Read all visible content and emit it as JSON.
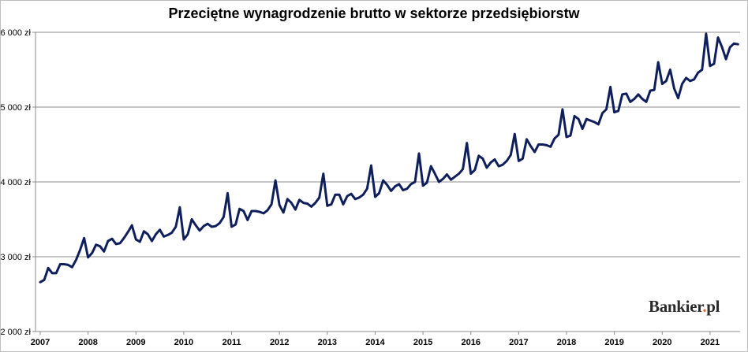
{
  "chart_data": {
    "type": "line",
    "title": "Przeciętne wynagrodzenie brutto w sektorze przedsiębiorstw",
    "xlabel": "",
    "ylabel": "",
    "ylim": [
      2000,
      6000
    ],
    "yticks": [
      2000,
      3000,
      4000,
      5000,
      6000
    ],
    "ytick_labels": [
      "2 000 zł",
      "3 000 zł",
      "4 000 zł",
      "5 000 zł",
      "6 000 zł"
    ],
    "xtick_labels": [
      "2007",
      "2008",
      "2009",
      "2010",
      "2011",
      "2012",
      "2013",
      "2014",
      "2015",
      "2016",
      "2017",
      "2018",
      "2019",
      "2020",
      "2021"
    ],
    "grid": true,
    "line_color": "#0f1f5c",
    "x_start": "2007-01",
    "x_step": "month",
    "series": [
      {
        "values": [
          2660,
          2690,
          2850,
          2780,
          2780,
          2900,
          2900,
          2890,
          2860,
          2960,
          3090,
          3250,
          2990,
          3050,
          3160,
          3140,
          3070,
          3210,
          3240,
          3170,
          3180,
          3250,
          3330,
          3420,
          3230,
          3200,
          3340,
          3300,
          3210,
          3300,
          3360,
          3270,
          3290,
          3320,
          3400,
          3660,
          3230,
          3300,
          3500,
          3420,
          3350,
          3410,
          3440,
          3400,
          3410,
          3450,
          3530,
          3850,
          3400,
          3430,
          3640,
          3610,
          3490,
          3610,
          3610,
          3600,
          3580,
          3620,
          3700,
          4020,
          3690,
          3590,
          3770,
          3720,
          3630,
          3760,
          3720,
          3710,
          3670,
          3720,
          3790,
          4110,
          3680,
          3700,
          3830,
          3830,
          3700,
          3810,
          3840,
          3770,
          3790,
          3830,
          3910,
          4220,
          3800,
          3850,
          4020,
          3960,
          3880,
          3940,
          3970,
          3890,
          3910,
          3970,
          4000,
          4380,
          3950,
          3990,
          4210,
          4110,
          4000,
          4040,
          4100,
          4030,
          4070,
          4110,
          4170,
          4520,
          4110,
          4160,
          4350,
          4310,
          4190,
          4260,
          4300,
          4210,
          4230,
          4280,
          4360,
          4640,
          4280,
          4310,
          4570,
          4480,
          4400,
          4500,
          4500,
          4490,
          4470,
          4580,
          4630,
          4970,
          4600,
          4620,
          4880,
          4840,
          4710,
          4840,
          4820,
          4800,
          4770,
          4920,
          4970,
          5270,
          4930,
          4950,
          5170,
          5180,
          5070,
          5110,
          5170,
          5110,
          5070,
          5220,
          5230,
          5600,
          5310,
          5350,
          5500,
          5250,
          5120,
          5310,
          5390,
          5350,
          5370,
          5460,
          5500,
          5980,
          5550,
          5580,
          5930,
          5800,
          5640,
          5800,
          5850,
          5840
        ]
      }
    ]
  },
  "watermark": {
    "brand": "Bankier",
    "dot": ".",
    "suffix": "pl"
  }
}
